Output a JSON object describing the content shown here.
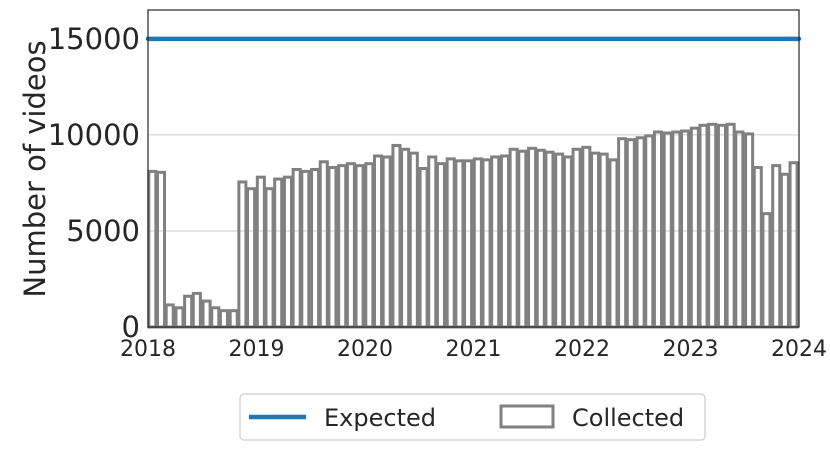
{
  "chart_data": {
    "type": "bar",
    "ylabel": "Number of videos",
    "xlabel": "",
    "xlim": [
      2018.0,
      2024.0
    ],
    "ylim": [
      0,
      16500
    ],
    "yticks": [
      0,
      5000,
      10000,
      15000
    ],
    "xticks": [
      2018,
      2019,
      2020,
      2021,
      2022,
      2023,
      2024
    ],
    "grid": "horizontal",
    "legend_position": "bottom-center",
    "series": [
      {
        "name": "Expected",
        "kind": "line",
        "color": "#1f77b4",
        "x": [
          2018.0,
          2024.0
        ],
        "values": [
          15000,
          15000
        ]
      },
      {
        "name": "Collected",
        "kind": "bar",
        "color": "#808080",
        "x": [
          2018.04,
          2018.12,
          2018.2,
          2018.29,
          2018.37,
          2018.45,
          2018.54,
          2018.62,
          2018.7,
          2018.79,
          2018.87,
          2018.95,
          2019.04,
          2019.12,
          2019.2,
          2019.29,
          2019.37,
          2019.45,
          2019.54,
          2019.62,
          2019.7,
          2019.79,
          2019.87,
          2019.95,
          2020.04,
          2020.12,
          2020.2,
          2020.29,
          2020.37,
          2020.45,
          2020.54,
          2020.62,
          2020.7,
          2020.79,
          2020.87,
          2020.95,
          2021.04,
          2021.12,
          2021.2,
          2021.29,
          2021.37,
          2021.45,
          2021.54,
          2021.62,
          2021.7,
          2021.79,
          2021.87,
          2021.95,
          2022.04,
          2022.12,
          2022.2,
          2022.29,
          2022.37,
          2022.45,
          2022.54,
          2022.62,
          2022.7,
          2022.79,
          2022.87,
          2022.95,
          2023.04,
          2023.12,
          2023.2,
          2023.29,
          2023.37,
          2023.45,
          2023.54,
          2023.62,
          2023.7,
          2023.79,
          2023.87,
          2023.95
        ],
        "values": [
          8100,
          8050,
          1150,
          1000,
          1600,
          1750,
          1350,
          1000,
          850,
          850,
          7550,
          7200,
          7800,
          7200,
          7700,
          7800,
          8200,
          8100,
          8200,
          8600,
          8300,
          8400,
          8500,
          8400,
          8500,
          8900,
          8850,
          9450,
          9250,
          9050,
          8250,
          8850,
          8500,
          8750,
          8650,
          8650,
          8750,
          8700,
          8850,
          8900,
          9250,
          9150,
          9300,
          9200,
          9100,
          9000,
          8850,
          9250,
          9350,
          9050,
          9000,
          8700,
          9800,
          9750,
          9850,
          9950,
          10150,
          10100,
          10150,
          10200,
          10350,
          10500,
          10550,
          10500,
          10550,
          10150,
          10050,
          8300,
          5900,
          8400,
          7950,
          8550
        ]
      }
    ],
    "legend": [
      "Expected",
      "Collected"
    ]
  }
}
